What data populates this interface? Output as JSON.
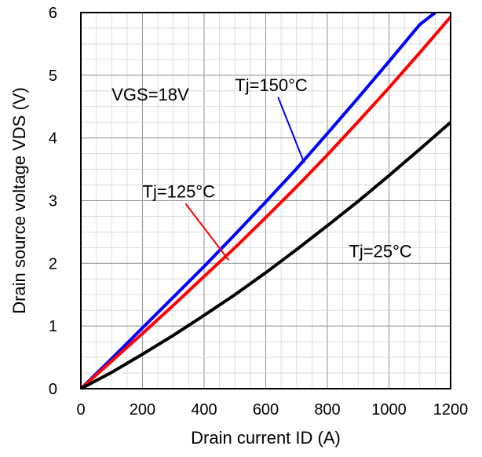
{
  "chart_data": {
    "type": "line",
    "xlabel": "Drain current ID (A)",
    "ylabel": "Drain source voltage VDS (V)",
    "xlim": [
      0,
      1200
    ],
    "ylim": [
      0,
      6
    ],
    "x_ticks": [
      "0",
      "200",
      "400",
      "600",
      "800",
      "1000",
      "1200"
    ],
    "y_ticks": [
      "0",
      "1",
      "2",
      "3",
      "4",
      "5",
      "6"
    ],
    "grid": true,
    "series": [
      {
        "name": "Tj=150°C",
        "color": "#0000ff",
        "points": [
          [
            0,
            0
          ],
          [
            100,
            0.48
          ],
          [
            200,
            0.97
          ],
          [
            300,
            1.46
          ],
          [
            400,
            1.95
          ],
          [
            500,
            2.46
          ],
          [
            600,
            2.98
          ],
          [
            700,
            3.51
          ],
          [
            800,
            4.07
          ],
          [
            900,
            4.64
          ],
          [
            1000,
            5.22
          ],
          [
            1100,
            5.81
          ],
          [
            1150,
            6.0
          ]
        ]
      },
      {
        "name": "Tj=125°C",
        "color": "#ff0000",
        "points": [
          [
            0,
            0
          ],
          [
            100,
            0.44
          ],
          [
            200,
            0.88
          ],
          [
            300,
            1.33
          ],
          [
            400,
            1.79
          ],
          [
            500,
            2.25
          ],
          [
            600,
            2.73
          ],
          [
            700,
            3.22
          ],
          [
            800,
            3.73
          ],
          [
            900,
            4.26
          ],
          [
            1000,
            4.8
          ],
          [
            1100,
            5.36
          ],
          [
            1200,
            5.93
          ]
        ]
      },
      {
        "name": "Tj=25°C",
        "color": "#000000",
        "points": [
          [
            0,
            0
          ],
          [
            100,
            0.26
          ],
          [
            200,
            0.55
          ],
          [
            300,
            0.85
          ],
          [
            400,
            1.17
          ],
          [
            500,
            1.5
          ],
          [
            600,
            1.85
          ],
          [
            700,
            2.22
          ],
          [
            800,
            2.6
          ],
          [
            900,
            2.99
          ],
          [
            1000,
            3.4
          ],
          [
            1100,
            3.82
          ],
          [
            1200,
            4.25
          ]
        ]
      }
    ],
    "annotations": [
      {
        "text": "VGS=18V",
        "x": 100,
        "y": 4.6
      },
      {
        "text": "Tj=150°C",
        "x": 500,
        "y": 4.75,
        "line_to": [
          725,
          3.6
        ],
        "line_color": "#0000ff"
      },
      {
        "text": "Tj=125°C",
        "x": 200,
        "y": 3.05,
        "line_to": [
          480,
          2.05
        ],
        "line_color": "#ff0000"
      },
      {
        "text": "Tj=25°C",
        "x": 870,
        "y": 2.1
      }
    ]
  }
}
